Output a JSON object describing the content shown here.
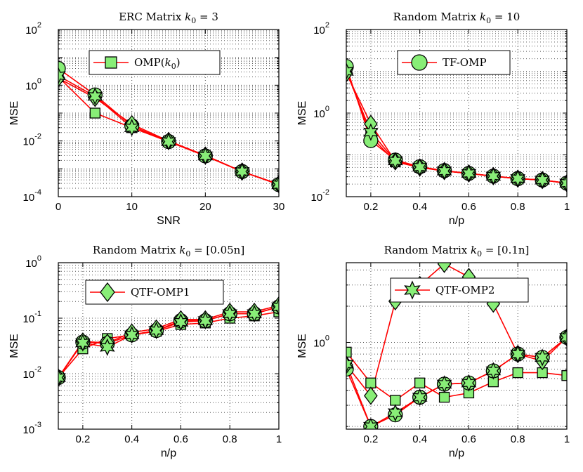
{
  "colors": {
    "line": "#ff0000",
    "marker_fill": "#88ee77",
    "marker_edge": "#000000",
    "grid": "#555555"
  },
  "chart_data": [
    {
      "type": "line",
      "title": "ERC Matrix",
      "title_math": "k0 = 3",
      "xlabel": "SNR",
      "ylabel": "MSE",
      "yscale": "log",
      "xlim": [
        0,
        30
      ],
      "ylim": [
        0.0001,
        100
      ],
      "xticks": [
        0,
        10,
        20,
        30
      ],
      "xtick_labels": [
        "0",
        "10",
        "20",
        "30"
      ],
      "yticks": [
        0.0001,
        0.01,
        1,
        100
      ],
      "ytick_labels": [
        [
          "10",
          "-4"
        ],
        [
          "10",
          "-2"
        ],
        [
          "10",
          "0"
        ],
        [
          "10",
          "2"
        ]
      ],
      "legend": {
        "label": "OMP(k0)",
        "marker": "square",
        "position": "top-center"
      },
      "x": [
        0,
        5,
        10,
        15,
        20,
        25,
        30
      ],
      "series": [
        {
          "name": "OMP(k0)",
          "marker": "square",
          "values": [
            2.0,
            0.1,
            0.03,
            0.01,
            0.003,
            0.0008,
            0.00028
          ]
        },
        {
          "name": "TF-OMP",
          "marker": "circle",
          "values": [
            4.0,
            0.45,
            0.035,
            0.0095,
            0.0029,
            0.0008,
            0.00027
          ]
        },
        {
          "name": "QTF-OMP1",
          "marker": "diamond",
          "values": [
            1.8,
            0.35,
            0.04,
            0.01,
            0.003,
            0.0008,
            0.00028
          ]
        },
        {
          "name": "QTF-OMP2",
          "marker": "hexagram",
          "values": [
            2.2,
            0.4,
            0.03,
            0.0095,
            0.0029,
            0.0008,
            0.00027
          ]
        }
      ]
    },
    {
      "type": "line",
      "title": "Random Matrix",
      "title_math": "k0 = 10",
      "xlabel": "n/p",
      "ylabel": "MSE",
      "yscale": "log",
      "xlim": [
        0.1,
        1
      ],
      "ylim": [
        0.01,
        100
      ],
      "xticks": [
        0.2,
        0.4,
        0.6,
        0.8,
        1
      ],
      "xtick_labels": [
        "0.2",
        "0.4",
        "0.6",
        "0.8",
        "1"
      ],
      "yticks": [
        0.01,
        1,
        100
      ],
      "ytick_labels": [
        [
          "10",
          "-2"
        ],
        [
          "10",
          "0"
        ],
        [
          "10",
          "2"
        ]
      ],
      "legend": {
        "label": "TF-OMP",
        "marker": "circle",
        "position": "top-center"
      },
      "x": [
        0.1,
        0.2,
        0.3,
        0.4,
        0.5,
        0.6,
        0.7,
        0.8,
        0.9,
        1.0
      ],
      "series": [
        {
          "name": "OMP(k0)",
          "marker": "square",
          "values": [
            11,
            0.28,
            0.068,
            0.05,
            0.041,
            0.036,
            0.031,
            0.027,
            0.025,
            0.021
          ]
        },
        {
          "name": "TF-OMP",
          "marker": "circle",
          "values": [
            13,
            0.22,
            0.075,
            0.052,
            0.042,
            0.036,
            0.031,
            0.027,
            0.025,
            0.021
          ]
        },
        {
          "name": "QTF-OMP1",
          "marker": "diamond",
          "values": [
            9,
            0.55,
            0.07,
            0.05,
            0.041,
            0.036,
            0.031,
            0.027,
            0.025,
            0.021
          ]
        },
        {
          "name": "QTF-OMP2",
          "marker": "hexagram",
          "values": [
            10,
            0.35,
            0.072,
            0.051,
            0.041,
            0.036,
            0.031,
            0.027,
            0.025,
            0.021
          ]
        }
      ]
    },
    {
      "type": "line",
      "title": "Random Matrix",
      "title_math": "k0 = [0.05n]",
      "xlabel": "n/p",
      "ylabel": "MSE",
      "yscale": "log",
      "xlim": [
        0.1,
        1
      ],
      "ylim": [
        0.001,
        1
      ],
      "xticks": [
        0.2,
        0.4,
        0.6,
        0.8,
        1
      ],
      "xtick_labels": [
        "0.2",
        "0.4",
        "0.6",
        "0.8",
        "1"
      ],
      "yticks": [
        0.001,
        0.01,
        0.1,
        1
      ],
      "ytick_labels": [
        [
          "10",
          "-3"
        ],
        [
          "10",
          "-2"
        ],
        [
          "10",
          "-1"
        ],
        [
          "10",
          "0"
        ]
      ],
      "legend": {
        "label": "QTF-OMP1",
        "marker": "diamond",
        "position": "top-center"
      },
      "x": [
        0.1,
        0.2,
        0.3,
        0.4,
        0.5,
        0.6,
        0.7,
        0.8,
        0.9,
        1.0
      ],
      "series": [
        {
          "name": "OMP(k0)",
          "marker": "square",
          "values": [
            0.0085,
            0.028,
            0.043,
            0.05,
            0.058,
            0.077,
            0.082,
            0.1,
            0.11,
            0.13
          ]
        },
        {
          "name": "TF-OMP",
          "marker": "circle",
          "values": [
            0.0085,
            0.037,
            0.035,
            0.05,
            0.06,
            0.09,
            0.09,
            0.12,
            0.12,
            0.16
          ]
        },
        {
          "name": "QTF-OMP1",
          "marker": "diamond",
          "values": [
            0.0085,
            0.038,
            0.036,
            0.055,
            0.065,
            0.095,
            0.095,
            0.13,
            0.13,
            0.17
          ]
        },
        {
          "name": "QTF-OMP2",
          "marker": "hexagram",
          "values": [
            0.0085,
            0.036,
            0.03,
            0.05,
            0.06,
            0.085,
            0.09,
            0.12,
            0.12,
            0.16
          ]
        }
      ]
    },
    {
      "type": "line",
      "title": "Random Matrix",
      "title_math": "k0 = [0.1n]",
      "xlabel": "n/p",
      "ylabel": "MSE",
      "yscale": "log",
      "xlim": [
        0.1,
        1
      ],
      "ylim": [
        0.19,
        4.6
      ],
      "xticks": [
        0.2,
        0.4,
        0.6,
        0.8,
        1
      ],
      "xtick_labels": [
        "0.2",
        "0.4",
        "0.6",
        "0.8",
        "1"
      ],
      "yticks": [
        1
      ],
      "ytick_labels": [
        [
          "10",
          "0"
        ]
      ],
      "legend": {
        "label": "QTF-OMP2",
        "marker": "hexagram",
        "position": "top-center"
      },
      "x": [
        0.1,
        0.2,
        0.3,
        0.4,
        0.5,
        0.6,
        0.7,
        0.8,
        0.9,
        1.0
      ],
      "series": [
        {
          "name": "OMP(k0)",
          "marker": "square",
          "values": [
            0.83,
            0.46,
            0.33,
            0.46,
            0.35,
            0.38,
            0.47,
            0.56,
            0.56,
            0.53
          ]
        },
        {
          "name": "TF-OMP",
          "marker": "circle",
          "values": [
            0.6,
            0.2,
            0.25,
            0.35,
            0.45,
            0.46,
            0.58,
            0.8,
            0.75,
            1.1
          ]
        },
        {
          "name": "QTF-OMP1",
          "marker": "diamond",
          "values": [
            0.65,
            0.36,
            2.2,
            3.0,
            4.5,
            3.5,
            2.1,
            0.8,
            0.7,
            1.1
          ]
        },
        {
          "name": "QTF-OMP2",
          "marker": "hexagram",
          "values": [
            0.66,
            0.2,
            0.26,
            0.35,
            0.45,
            0.46,
            0.58,
            0.8,
            0.75,
            1.1
          ]
        }
      ]
    }
  ]
}
